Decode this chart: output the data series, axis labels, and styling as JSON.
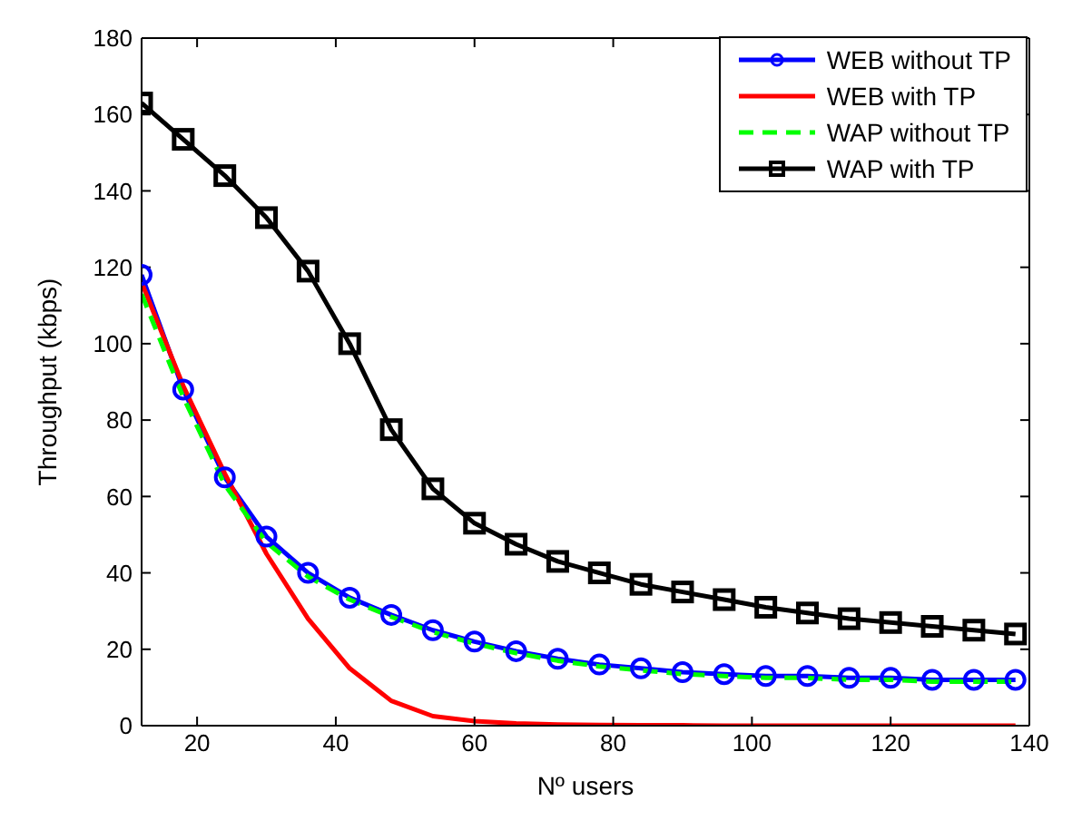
{
  "chart_data": {
    "type": "line",
    "xlabel": "Nº users",
    "ylabel": "Throughput (kbps)",
    "x": [
      12,
      18,
      24,
      30,
      36,
      42,
      48,
      54,
      60,
      66,
      72,
      78,
      84,
      90,
      96,
      102,
      108,
      114,
      120,
      126,
      132,
      138
    ],
    "series": [
      {
        "name": "WEB without TP",
        "color": "#0000ff",
        "marker": "circle",
        "line_style": "solid",
        "values": [
          118,
          88,
          65,
          49.5,
          40,
          33.5,
          29,
          25,
          22,
          19.5,
          17.5,
          16,
          15,
          14,
          13.5,
          13,
          13,
          12.5,
          12.5,
          12,
          12,
          12
        ]
      },
      {
        "name": "WEB with TP",
        "color": "#ff0000",
        "marker": "none",
        "line_style": "solid",
        "values": [
          116,
          89,
          66,
          45,
          28,
          15,
          6.5,
          2.5,
          1.2,
          0.6,
          0.3,
          0.2,
          0.1,
          0.1,
          0,
          0,
          0,
          0,
          0,
          0,
          0,
          0
        ]
      },
      {
        "name": "WAP without TP",
        "color": "#00ff00",
        "marker": "none",
        "line_style": "dashed",
        "values": [
          113,
          86,
          63,
          48,
          39,
          33,
          28.5,
          24.5,
          21.5,
          19,
          17,
          15.5,
          14.5,
          13.5,
          13,
          12.5,
          12.5,
          12,
          12,
          11.5,
          11.5,
          11.5
        ]
      },
      {
        "name": "WAP with TP",
        "color": "#000000",
        "marker": "square",
        "line_style": "solid",
        "values": [
          163,
          153.5,
          144,
          133,
          119,
          100,
          77.5,
          62,
          53,
          47.5,
          43,
          40,
          37,
          35,
          33,
          31,
          29.5,
          28,
          27,
          26,
          25,
          24
        ]
      }
    ],
    "xlim": [
      12,
      140
    ],
    "xticks": [
      20,
      40,
      60,
      80,
      100,
      120,
      140
    ],
    "ylim": [
      0,
      180
    ],
    "yticks": [
      0,
      20,
      40,
      60,
      80,
      100,
      120,
      140,
      160,
      180
    ],
    "grid": false,
    "legend": "top right"
  }
}
